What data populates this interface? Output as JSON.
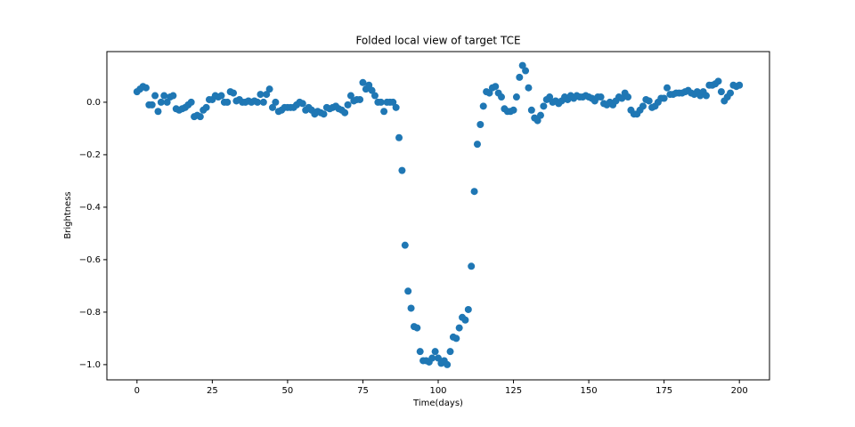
{
  "chart_data": {
    "type": "scatter",
    "title": "Folded local view of target TCE",
    "x_label": "Time(days)",
    "y_label": "Brightness",
    "color": "#1f77b4",
    "x": [
      0,
      1,
      2,
      3,
      4,
      5,
      6,
      7,
      8,
      9,
      10,
      11,
      12,
      13,
      14,
      15,
      16,
      17,
      18,
      19,
      20,
      21,
      22,
      23,
      24,
      25,
      26,
      27,
      28,
      29,
      30,
      31,
      32,
      33,
      34,
      35,
      36,
      37,
      38,
      39,
      40,
      41,
      42,
      43,
      44,
      45,
      46,
      47,
      48,
      49,
      50,
      51,
      52,
      53,
      54,
      55,
      56,
      57,
      58,
      59,
      60,
      61,
      62,
      63,
      64,
      65,
      66,
      67,
      68,
      69,
      70,
      71,
      72,
      73,
      74,
      75,
      76,
      77,
      78,
      79,
      80,
      81,
      82,
      83,
      84,
      85,
      86,
      87,
      88,
      89,
      90,
      91,
      92,
      93,
      94,
      95,
      96,
      97,
      98,
      99,
      100,
      101,
      102,
      103,
      104,
      105,
      106,
      107,
      108,
      109,
      110,
      111,
      112,
      113,
      114,
      115,
      116,
      117,
      118,
      119,
      120,
      121,
      122,
      123,
      124,
      125,
      126,
      127,
      128,
      129,
      130,
      131,
      132,
      133,
      134,
      135,
      136,
      137,
      138,
      139,
      140,
      141,
      142,
      143,
      144,
      145,
      146,
      147,
      148,
      149,
      150,
      151,
      152,
      153,
      154,
      155,
      156,
      157,
      158,
      159,
      160,
      161,
      162,
      163,
      164,
      165,
      166,
      167,
      168,
      169,
      170,
      171,
      172,
      173,
      174,
      175,
      176,
      177,
      178,
      179,
      180,
      181,
      182,
      183,
      184,
      185,
      186,
      187,
      188,
      189,
      190,
      191,
      192,
      193,
      194,
      195,
      196,
      197,
      198,
      199,
      200
    ],
    "values": [
      0.04,
      0.05,
      0.06,
      0.055,
      -0.01,
      -0.01,
      0.025,
      -0.035,
      0.0,
      0.025,
      0.0,
      0.02,
      0.025,
      -0.025,
      -0.03,
      -0.025,
      -0.02,
      -0.01,
      0.0,
      -0.055,
      -0.05,
      -0.055,
      -0.03,
      -0.02,
      0.01,
      0.01,
      0.025,
      0.02,
      0.025,
      0.0,
      0.0,
      0.04,
      0.035,
      0.005,
      0.01,
      0.0,
      0.0,
      0.005,
      0.0,
      0.005,
      0.0,
      0.03,
      0.0,
      0.03,
      0.05,
      -0.02,
      0.0,
      -0.035,
      -0.03,
      -0.02,
      -0.02,
      -0.02,
      -0.02,
      -0.01,
      0.0,
      -0.005,
      -0.03,
      -0.02,
      -0.03,
      -0.045,
      -0.035,
      -0.04,
      -0.045,
      -0.02,
      -0.025,
      -0.02,
      -0.015,
      -0.025,
      -0.03,
      -0.04,
      -0.01,
      0.025,
      0.005,
      0.01,
      0.01,
      0.075,
      0.05,
      0.065,
      0.045,
      0.025,
      0.0,
      0.0,
      -0.035,
      0.0,
      0.0,
      0.0,
      -0.02,
      -0.135,
      -0.26,
      -0.545,
      -0.72,
      -0.785,
      -0.855,
      -0.86,
      -0.95,
      -0.985,
      -0.985,
      -0.99,
      -0.975,
      -0.95,
      -0.975,
      -0.995,
      -0.985,
      -1.0,
      -0.95,
      -0.895,
      -0.9,
      -0.86,
      -0.82,
      -0.83,
      -0.79,
      -0.625,
      -0.34,
      -0.16,
      -0.085,
      -0.015,
      0.04,
      0.035,
      0.055,
      0.06,
      0.035,
      0.02,
      -0.025,
      -0.035,
      -0.035,
      -0.03,
      0.02,
      0.095,
      0.14,
      0.12,
      0.055,
      -0.03,
      -0.06,
      -0.07,
      -0.05,
      -0.015,
      0.01,
      0.02,
      0.0,
      0.005,
      -0.005,
      0.005,
      0.02,
      0.01,
      0.025,
      0.015,
      0.025,
      0.02,
      0.02,
      0.025,
      0.02,
      0.015,
      0.005,
      0.02,
      0.02,
      -0.005,
      -0.01,
      0.0,
      -0.01,
      0.005,
      0.02,
      0.015,
      0.035,
      0.02,
      -0.03,
      -0.045,
      -0.045,
      -0.03,
      -0.015,
      0.01,
      0.005,
      -0.02,
      -0.015,
      0.0,
      0.015,
      0.015,
      0.055,
      0.03,
      0.03,
      0.035,
      0.035,
      0.035,
      0.04,
      0.045,
      0.035,
      0.03,
      0.04,
      0.025,
      0.04,
      0.025,
      0.065,
      0.065,
      0.07,
      0.08,
      0.04,
      0.005,
      0.02,
      0.035,
      0.065,
      0.06,
      0.065
    ],
    "xlim": [
      -10,
      210
    ],
    "ylim": [
      -1.058,
      0.193
    ],
    "xticks": [
      0,
      25,
      50,
      75,
      100,
      125,
      150,
      175,
      200
    ],
    "yticks": [
      {
        "value": -1.0,
        "label": "−1.0"
      },
      {
        "value": -0.8,
        "label": "−0.8"
      },
      {
        "value": -0.6,
        "label": "−0.6"
      },
      {
        "value": -0.4,
        "label": "−0.4"
      },
      {
        "value": -0.2,
        "label": "−0.2"
      },
      {
        "value": 0,
        "label": "0.0"
      }
    ]
  }
}
